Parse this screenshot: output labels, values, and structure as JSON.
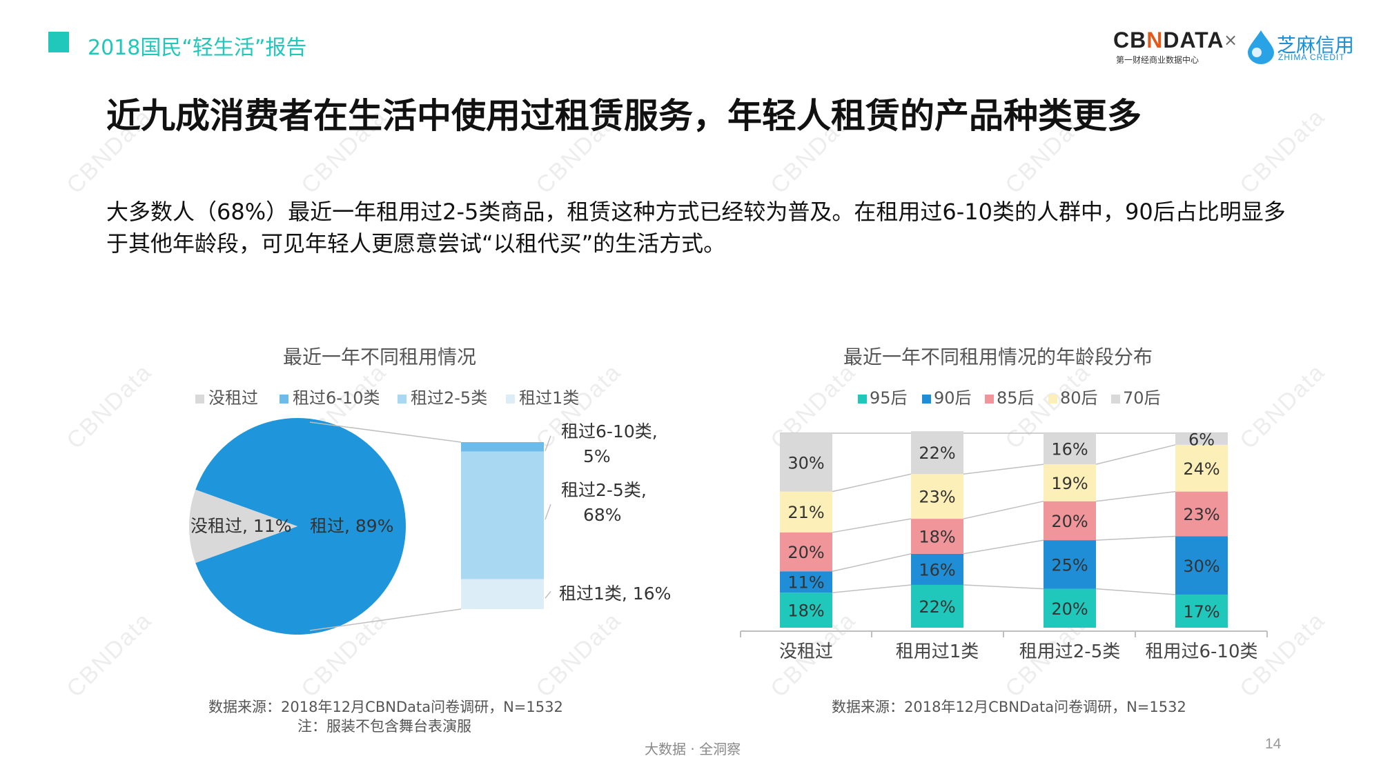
{
  "header": {
    "title": "2018国民“轻生活”报告",
    "logo_cbn": "CBNDATA",
    "logo_cbn_sub": "第一财经商业数据中心",
    "logo_x": "×",
    "logo_zhima": "芝麻信用",
    "logo_zhima_sub": "ZHIMA CREDIT"
  },
  "main_title": "近九成消费者在生活中使用过租赁服务，年轻人租赁的产品种类更多",
  "description": "大多数人（68%）最近一年租用过2-5类商品，租赁这种方式已经较为普及。在租用过6-10类的人群中，90后占比明显多于其他年龄段，可见年轻人更愿意尝试“以租代买”的生活方式。",
  "left_chart": {
    "title": "最近一年不同租用情况",
    "source": "数据来源：2018年12月CBNData问卷调研，N=1532",
    "note": "注：服装不包含舞台表演服"
  },
  "right_chart": {
    "title": "最近一年不同租用情况的年龄段分布",
    "source": "数据来源：2018年12月CBNData问卷调研，N=1532"
  },
  "footer": {
    "center": "大数据 · 全洞察",
    "page_number": "14"
  },
  "colors": {
    "accent": "#1fc8bb",
    "pie_rented": "#1f96db",
    "pie_not_rented": "#d9d9d9",
    "bar_6_10": "#6cbbe8",
    "bar_2_5": "#a8d8f2",
    "bar_1": "#dcedf8"
  },
  "chart_data": [
    {
      "type": "pie",
      "title": "最近一年不同租用情况",
      "legend": [
        "没租过",
        "租过6-10类",
        "租过2-5类",
        "租过1类"
      ],
      "slices": [
        {
          "label": "租过",
          "value": 89,
          "display": "租过, 89%",
          "color": "#1f96db"
        },
        {
          "label": "没租过",
          "value": 11,
          "display": "没租过, 11%",
          "color": "#d9d9d9"
        }
      ],
      "breakdown": {
        "of": "租过",
        "segments": [
          {
            "label": "租过6-10类",
            "value": 5,
            "display": [
              "租过6-10类,",
              "5%"
            ],
            "color": "#6cbbe8"
          },
          {
            "label": "租过2-5类",
            "value": 68,
            "display": [
              "租过2-5类,",
              "68%"
            ],
            "color": "#a8d8f2"
          },
          {
            "label": "租过1类",
            "value": 16,
            "display": [
              "租过1类, 16%"
            ],
            "color": "#dcedf8"
          }
        ]
      }
    },
    {
      "type": "bar",
      "stacked": true,
      "percent_stacked": true,
      "title": "最近一年不同租用情况的年龄段分布",
      "categories": [
        "没租过",
        "租用过1类",
        "租用过2-5类",
        "租用过6-10类"
      ],
      "series": [
        {
          "name": "95后",
          "color": "#1fc8bb",
          "values": [
            18,
            22,
            20,
            17
          ]
        },
        {
          "name": "90后",
          "color": "#1f8ed6",
          "values": [
            11,
            16,
            25,
            30
          ]
        },
        {
          "name": "85后",
          "color": "#f0959a",
          "values": [
            20,
            18,
            20,
            23
          ]
        },
        {
          "name": "80后",
          "color": "#fcefb8",
          "values": [
            21,
            23,
            19,
            24
          ]
        },
        {
          "name": "70后",
          "color": "#d9d9d9",
          "values": [
            30,
            22,
            16,
            6
          ]
        }
      ],
      "legend_position": "top",
      "grid": false
    }
  ]
}
